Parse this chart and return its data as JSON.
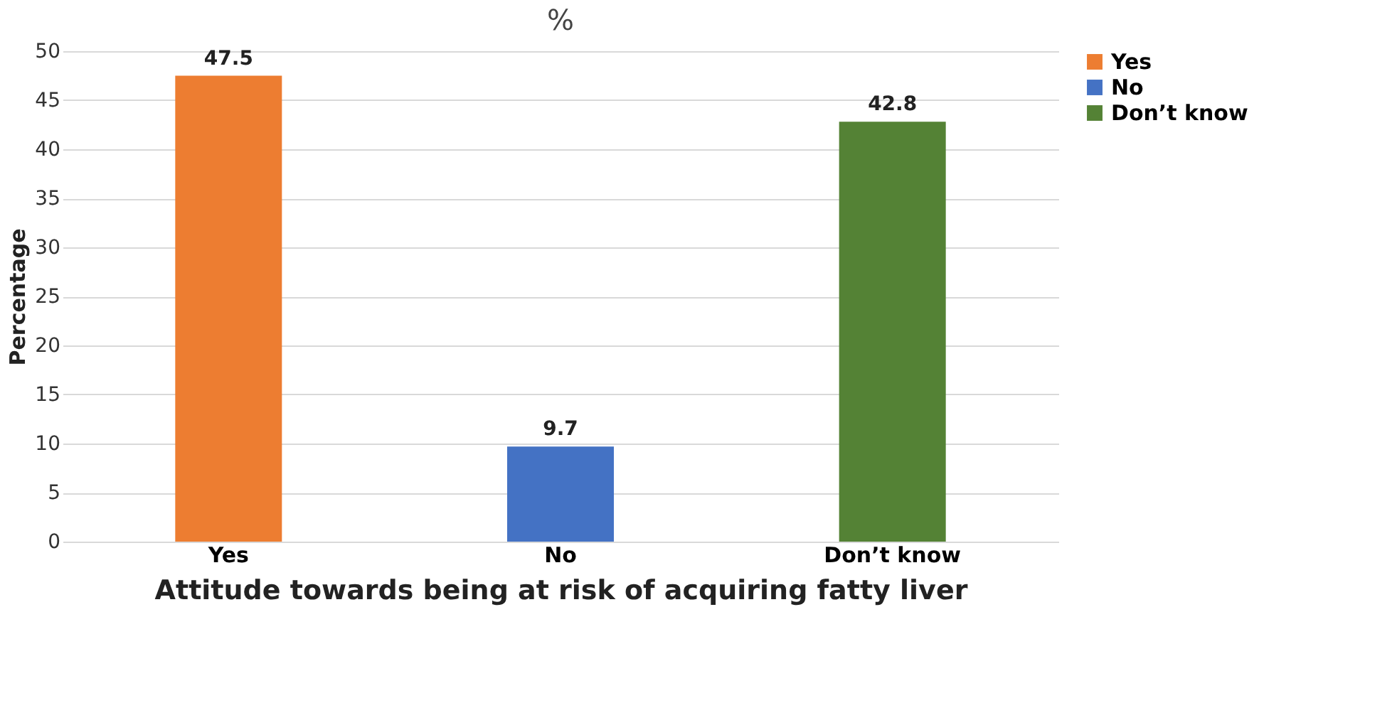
{
  "chart_data": {
    "type": "bar",
    "title": "%",
    "xlabel": "Attitude towards being at risk of acquiring fatty liver",
    "ylabel": "Percentage",
    "categories": [
      "Yes",
      "No",
      "Don’t know"
    ],
    "series": [
      {
        "name": "Yes",
        "color": "#ed7d31",
        "values": [
          47.5,
          null,
          null
        ]
      },
      {
        "name": "No",
        "color": "#4472c4",
        "values": [
          null,
          9.7,
          null
        ]
      },
      {
        "name": "Don’t know",
        "color": "#548235",
        "values": [
          null,
          null,
          42.8
        ]
      }
    ],
    "ylim": [
      0,
      50
    ],
    "yticks": [
      0,
      5,
      10,
      15,
      20,
      25,
      30,
      35,
      40,
      45,
      50
    ],
    "grid": "y",
    "legend": "right",
    "data_labels": true
  }
}
